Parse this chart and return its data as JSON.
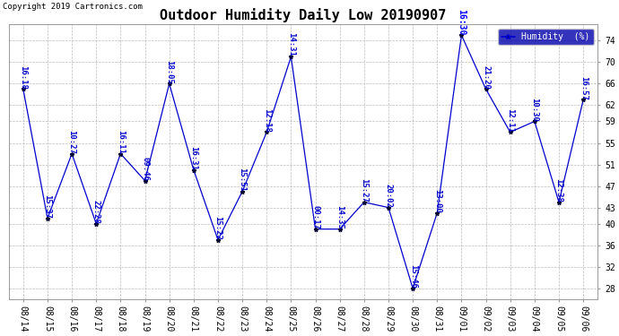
{
  "title": "Outdoor Humidity Daily Low 20190907",
  "copyright": "Copyright 2019 Cartronics.com",
  "legend_label": "Humidity  (%)",
  "dates": [
    "08/14",
    "08/15",
    "08/16",
    "08/17",
    "08/18",
    "08/19",
    "08/20",
    "08/21",
    "08/22",
    "08/23",
    "08/24",
    "08/25",
    "08/26",
    "08/27",
    "08/28",
    "08/29",
    "08/30",
    "08/31",
    "09/01",
    "09/02",
    "09/03",
    "09/04",
    "09/05",
    "09/06"
  ],
  "values": [
    65,
    41,
    53,
    40,
    53,
    48,
    66,
    50,
    37,
    46,
    57,
    71,
    39,
    39,
    44,
    43,
    28,
    42,
    75,
    65,
    57,
    59,
    44,
    63
  ],
  "times": [
    "16:18",
    "15:37",
    "10:27",
    "22:28",
    "16:11",
    "09:46",
    "18:05",
    "16:31",
    "15:22",
    "15:51",
    "12:18",
    "14:31",
    "00:17",
    "14:35",
    "15:27",
    "20:02",
    "15:46",
    "13:00",
    "16:30",
    "21:20",
    "12:11",
    "10:30",
    "12:38",
    "16:57"
  ],
  "line_color": "#0000CC",
  "marker_color": "#000033",
  "bg_color": "#ffffff",
  "grid_color": "#bbbbbb",
  "title_fontsize": 11,
  "tick_fontsize": 7,
  "annotation_fontsize": 6.5,
  "ylim": [
    26,
    77
  ],
  "yticks": [
    28,
    32,
    36,
    40,
    43,
    47,
    51,
    55,
    59,
    62,
    66,
    70,
    74
  ],
  "legend_bg": "#0000AA",
  "legend_fg": "#ffffff",
  "max_idx": 18
}
